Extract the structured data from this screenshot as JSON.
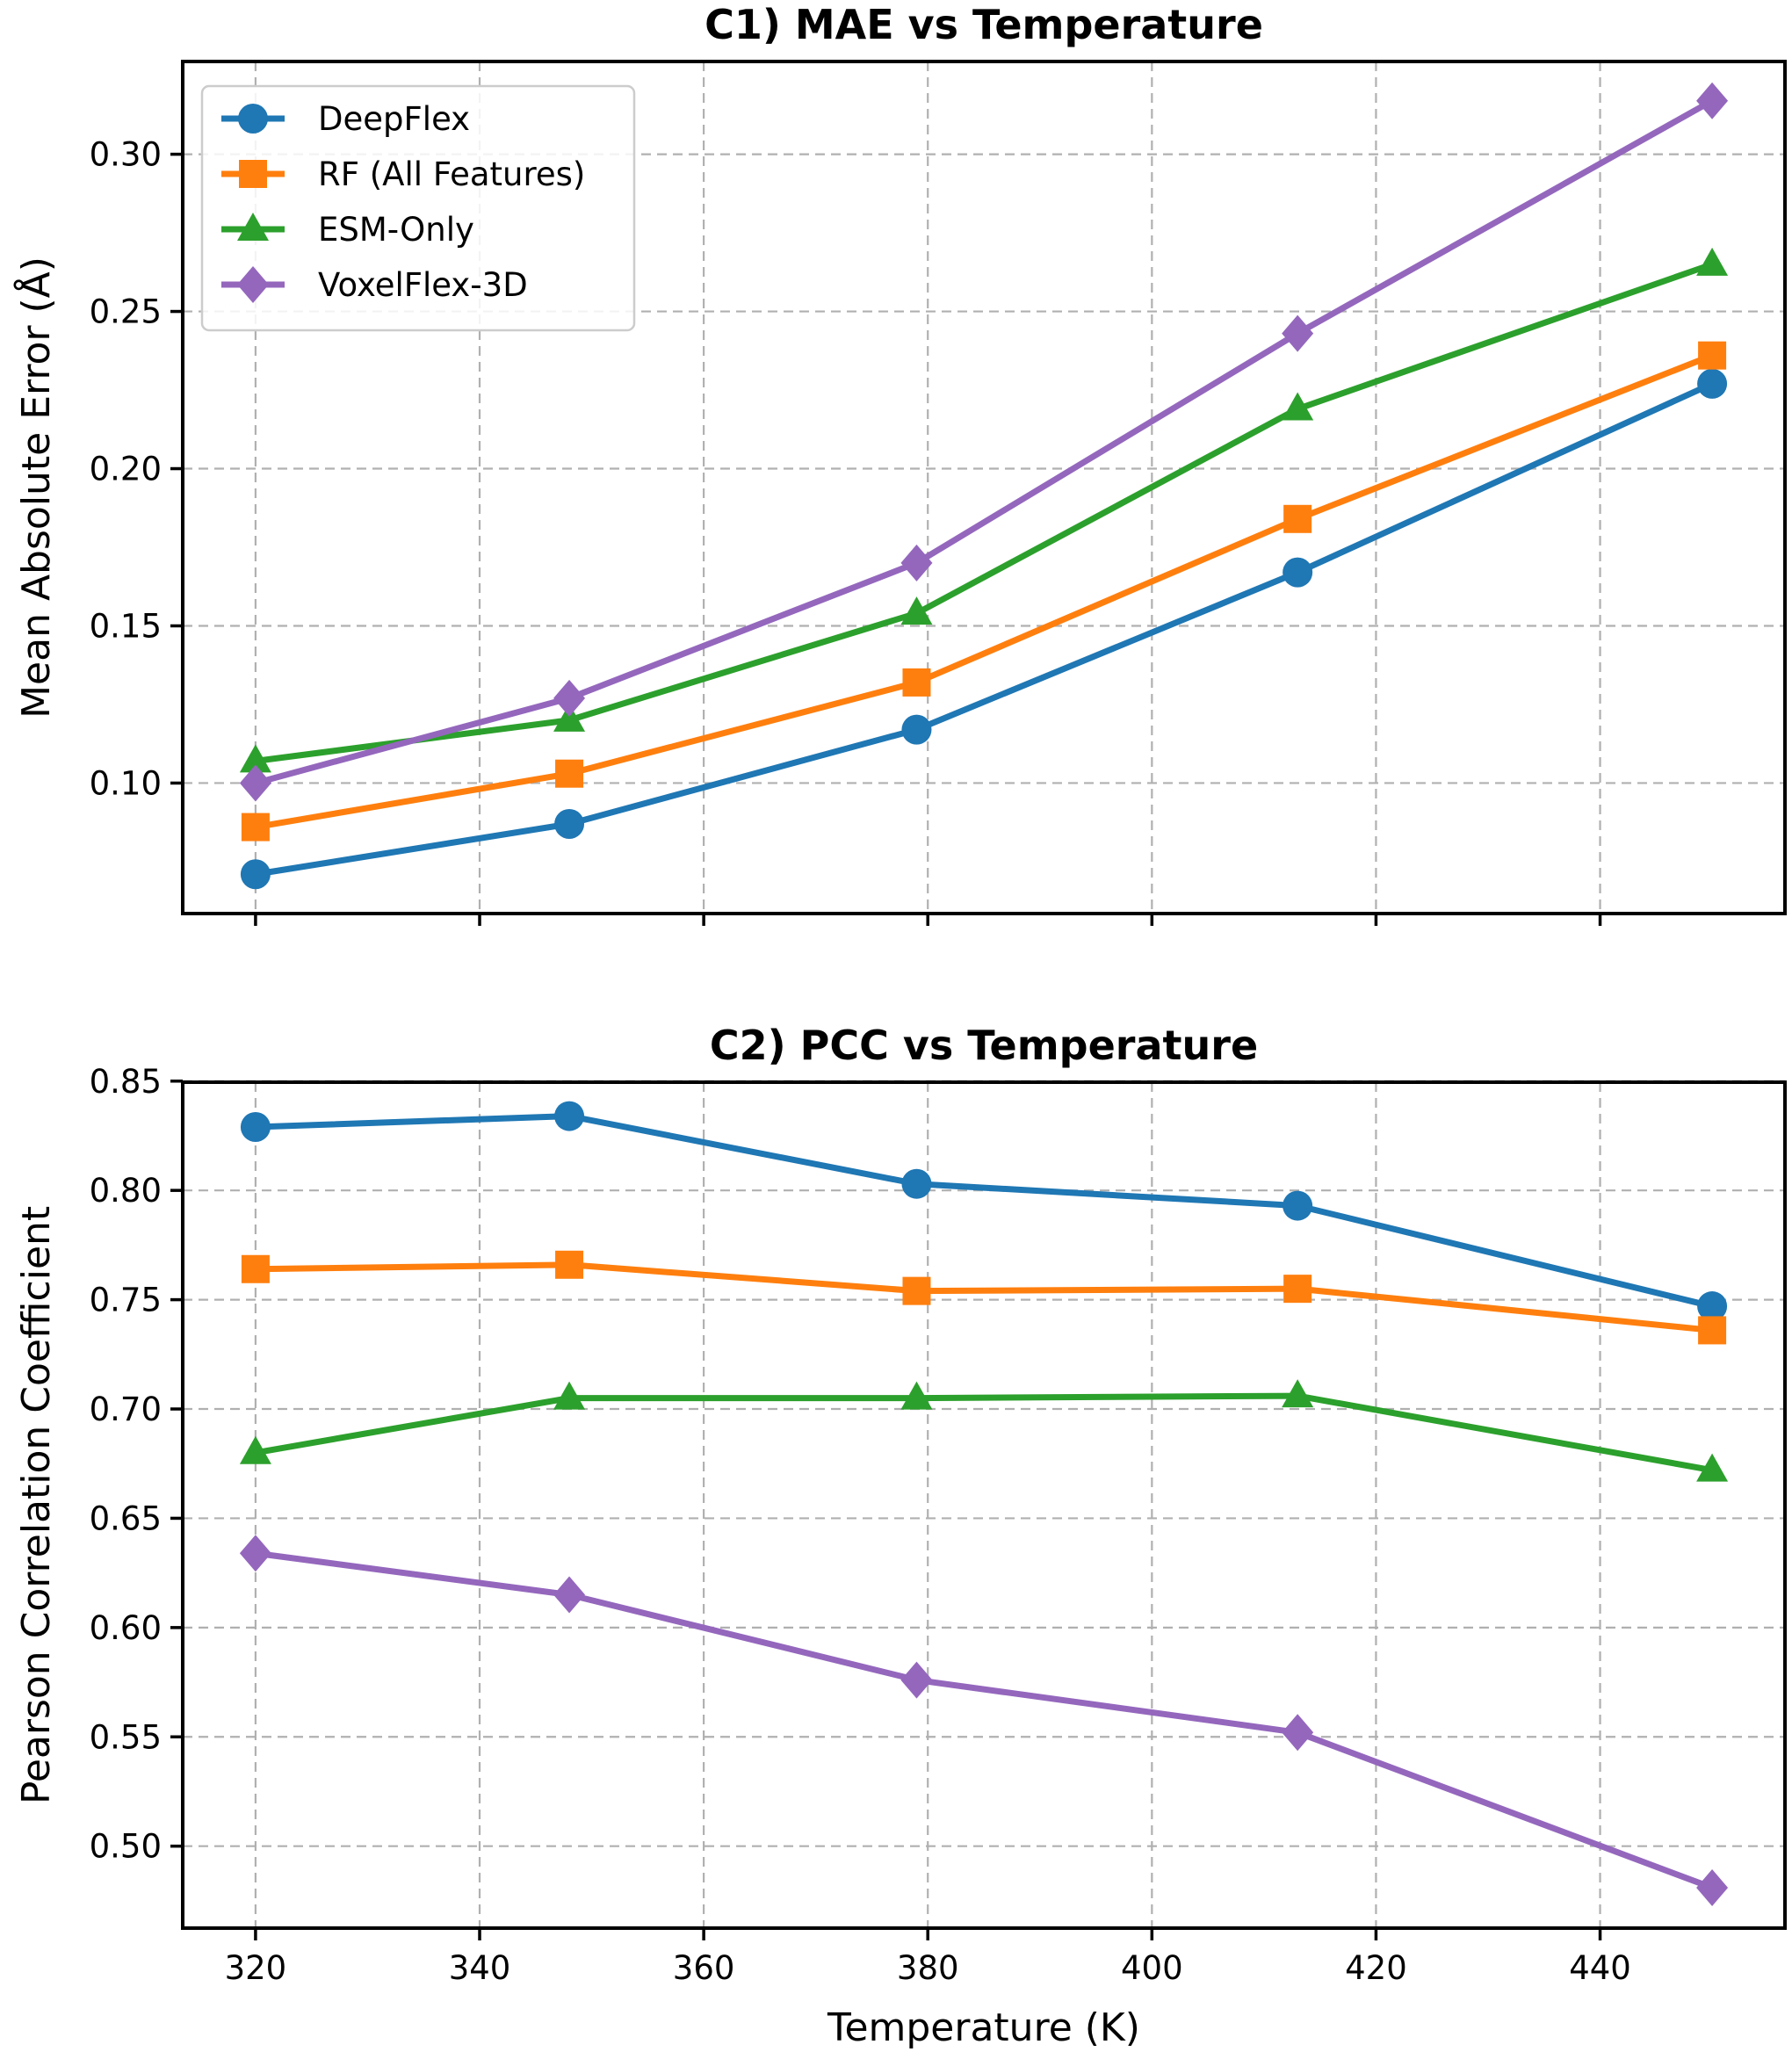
{
  "chart_data": [
    {
      "type": "line",
      "title": "C1) MAE vs Temperature",
      "xlabel": "",
      "ylabel": "Mean Absolute Error (Å)",
      "x": [
        320,
        348,
        379,
        413,
        450
      ],
      "xlim": [
        313.5,
        456.5
      ],
      "ylim": [
        0.0585,
        0.3295
      ],
      "xticks": [
        320,
        340,
        360,
        380,
        400,
        420,
        440
      ],
      "xtick_labels_shown": false,
      "yticks": [
        0.1,
        0.15,
        0.2,
        0.25,
        0.3
      ],
      "ytick_labels": [
        "0.10",
        "0.15",
        "0.20",
        "0.25",
        "0.30"
      ],
      "grid": true,
      "legend": "upper left",
      "series": [
        {
          "name": "DeepFlex",
          "color": "#1f77b4",
          "marker": "circle",
          "values": [
            0.071,
            0.087,
            0.117,
            0.167,
            0.227
          ]
        },
        {
          "name": "RF (All Features)",
          "color": "#ff7f0e",
          "marker": "square",
          "values": [
            0.086,
            0.103,
            0.132,
            0.184,
            0.236
          ]
        },
        {
          "name": "ESM-Only",
          "color": "#2ca02c",
          "marker": "triangle",
          "values": [
            0.107,
            0.12,
            0.154,
            0.219,
            0.265
          ]
        },
        {
          "name": "VoxelFlex-3D",
          "color": "#9467bd",
          "marker": "diamond",
          "values": [
            0.1,
            0.127,
            0.17,
            0.243,
            0.317
          ]
        }
      ]
    },
    {
      "type": "line",
      "title": "C2) PCC vs Temperature",
      "xlabel": "Temperature (K)",
      "ylabel": "Pearson Correlation Coefficient",
      "x": [
        320,
        348,
        379,
        413,
        450
      ],
      "xlim": [
        313.5,
        456.5
      ],
      "ylim": [
        0.4625,
        0.8495
      ],
      "xticks": [
        320,
        340,
        360,
        380,
        400,
        420,
        440
      ],
      "xtick_labels": [
        "320",
        "340",
        "360",
        "380",
        "400",
        "420",
        "440"
      ],
      "xtick_labels_shown": true,
      "yticks": [
        0.5,
        0.55,
        0.6,
        0.65,
        0.7,
        0.75,
        0.8,
        0.85
      ],
      "ytick_labels": [
        "0.50",
        "0.55",
        "0.60",
        "0.65",
        "0.70",
        "0.75",
        "0.80",
        "0.85"
      ],
      "grid": true,
      "legend": "none",
      "series": [
        {
          "name": "DeepFlex",
          "color": "#1f77b4",
          "marker": "circle",
          "values": [
            0.829,
            0.834,
            0.803,
            0.793,
            0.747
          ]
        },
        {
          "name": "RF (All Features)",
          "color": "#ff7f0e",
          "marker": "square",
          "values": [
            0.764,
            0.766,
            0.754,
            0.755,
            0.736
          ]
        },
        {
          "name": "ESM-Only",
          "color": "#2ca02c",
          "marker": "triangle",
          "values": [
            0.68,
            0.705,
            0.705,
            0.706,
            0.672
          ]
        },
        {
          "name": "VoxelFlex-3D",
          "color": "#9467bd",
          "marker": "diamond",
          "values": [
            0.634,
            0.615,
            0.576,
            0.552,
            0.481
          ]
        }
      ]
    }
  ]
}
